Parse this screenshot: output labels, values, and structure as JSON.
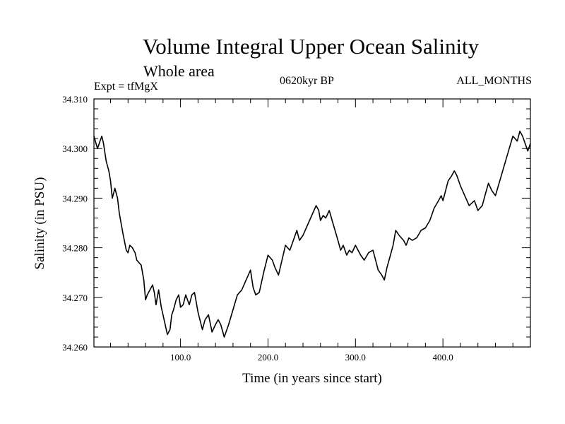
{
  "chart_data": {
    "type": "line",
    "title": "Volume Integral Upper Ocean Salinity",
    "subtitle": "Whole area",
    "experiment_label": "Expt = tfMgX",
    "period_label": "0620kyr BP",
    "months_label": "ALL_MONTHS",
    "xlabel": "Time (in years since start)",
    "ylabel": "Salinity (in PSU)",
    "xlim": [
      1,
      500
    ],
    "ylim": [
      34.26,
      34.31
    ],
    "x_ticks": [
      100,
      200,
      300,
      400
    ],
    "x_tick_labels": [
      "100.0",
      "200.0",
      "300.0",
      "400.0"
    ],
    "y_ticks": [
      34.26,
      34.27,
      34.28,
      34.29,
      34.3,
      34.31
    ],
    "y_tick_labels": [
      "34.260",
      "34.270",
      "34.280",
      "34.290",
      "34.300",
      "34.310"
    ],
    "grid": false,
    "line_color": "#000000",
    "series": [
      {
        "x": [
          1,
          5,
          10,
          12,
          15,
          18,
          20,
          22,
          25,
          28,
          30,
          34,
          38,
          40,
          42,
          45,
          48,
          50,
          55,
          58,
          60,
          62,
          65,
          68,
          70,
          72,
          75,
          78,
          80,
          85,
          88,
          90,
          92,
          95,
          98,
          100,
          103,
          106,
          110,
          113,
          116,
          120,
          125,
          128,
          132,
          136,
          140,
          143,
          146,
          150,
          155,
          160,
          165,
          170,
          175,
          180,
          183,
          186,
          190,
          195,
          200,
          205,
          208,
          212,
          216,
          220,
          225,
          230,
          233,
          236,
          240,
          245,
          250,
          255,
          258,
          260,
          263,
          266,
          270,
          275,
          280,
          283,
          286,
          290,
          293,
          296,
          300,
          303,
          306,
          310,
          315,
          320,
          323,
          326,
          330,
          333,
          336,
          340,
          343,
          346,
          350,
          355,
          358,
          361,
          365,
          370,
          375,
          380,
          385,
          390,
          395,
          398,
          400,
          403,
          406,
          410,
          413,
          416,
          420,
          425,
          430,
          433,
          436,
          440,
          445,
          448,
          452,
          456,
          460,
          465,
          470,
          475,
          480,
          485,
          488,
          491,
          494,
          497,
          500
        ],
        "y": [
          34.3025,
          34.3,
          34.3025,
          34.301,
          34.2975,
          34.2955,
          34.2935,
          34.29,
          34.292,
          34.29,
          34.287,
          34.283,
          34.2795,
          34.279,
          34.2805,
          34.28,
          34.279,
          34.2775,
          34.2765,
          34.2735,
          34.2695,
          34.2705,
          34.2715,
          34.2725,
          34.271,
          34.2685,
          34.2715,
          34.268,
          34.2665,
          34.2625,
          34.2635,
          34.2665,
          34.2675,
          34.2695,
          34.2705,
          34.268,
          34.2685,
          34.2705,
          34.2685,
          34.2705,
          34.271,
          34.267,
          34.2635,
          34.2655,
          34.2665,
          34.263,
          34.2645,
          34.2655,
          34.2645,
          34.262,
          34.2645,
          34.2675,
          34.2705,
          34.2715,
          34.2735,
          34.2755,
          34.272,
          34.2705,
          34.271,
          34.275,
          34.2785,
          34.2775,
          34.276,
          34.2745,
          34.2775,
          34.2805,
          34.2795,
          34.282,
          34.2835,
          34.2815,
          34.2825,
          34.2845,
          34.2865,
          34.2885,
          34.2875,
          34.2855,
          34.2865,
          34.286,
          34.2875,
          34.2845,
          34.2815,
          34.2795,
          34.2805,
          34.2785,
          34.2795,
          34.279,
          34.2805,
          34.2795,
          34.2785,
          34.2775,
          34.279,
          34.2795,
          34.2775,
          34.2755,
          34.2745,
          34.2735,
          34.276,
          34.2785,
          34.2805,
          34.2835,
          34.2825,
          34.2815,
          34.2805,
          34.282,
          34.2815,
          34.282,
          34.2835,
          34.284,
          34.2855,
          34.288,
          34.2895,
          34.2905,
          34.2895,
          34.2915,
          34.2935,
          34.2945,
          34.2955,
          34.2945,
          34.2925,
          34.2905,
          34.2885,
          34.289,
          34.2895,
          34.2875,
          34.2885,
          34.2905,
          34.293,
          34.2915,
          34.2905,
          34.2935,
          34.2965,
          34.2995,
          34.3025,
          34.3015,
          34.3035,
          34.3025,
          34.301,
          34.2995,
          34.301
        ]
      }
    ]
  }
}
